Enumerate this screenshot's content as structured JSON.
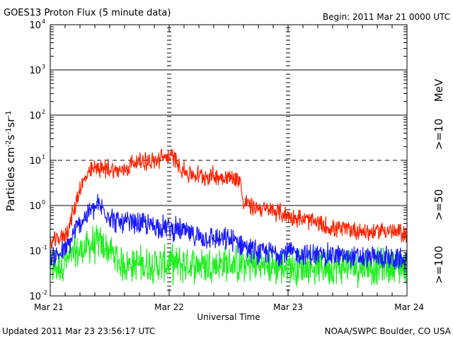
{
  "header": {
    "title": "GOES13 Proton Flux (5 minute data)",
    "begin": "Begin: 2011 Mar 21 0000 UTC"
  },
  "footer": {
    "updated": "Updated 2011 Mar 23 23:56:17 UTC",
    "credit": "NOAA/SWPC Boulder, CO USA"
  },
  "chart_data": {
    "type": "line",
    "title": "GOES13 Proton Flux (5 minute data)",
    "xlabel": "Universal Time",
    "ylabel": {
      "base": "Particles cm",
      "e1": "-2",
      "s": "s",
      "e2": "-1",
      "sr": "sr",
      "e3": "-1"
    },
    "y_scale": "log",
    "ylim": [
      0.01,
      10000
    ],
    "y_ticks": [
      {
        "value": 0.01,
        "base": "10",
        "exp": "-2"
      },
      {
        "value": 0.1,
        "base": "10",
        "exp": "-1"
      },
      {
        "value": 1,
        "base": "10",
        "exp": "0"
      },
      {
        "value": 10,
        "base": "10",
        "exp": "1"
      },
      {
        "value": 100,
        "base": "10",
        "exp": "2"
      },
      {
        "value": 1000,
        "base": "10",
        "exp": "3"
      },
      {
        "value": 10000,
        "base": "10",
        "exp": "4"
      }
    ],
    "x_ticks": [
      "Mar 21",
      "Mar 22",
      "Mar 23",
      "Mar 24"
    ],
    "units_label": "MeV",
    "reference_lines": {
      "solid": [
        1,
        100,
        1000
      ],
      "dashed": [
        10
      ]
    },
    "series": [
      {
        "name": ">=10",
        "color": "#ff2200",
        "noise": 0.18,
        "x": [
          0.0,
          0.1,
          0.15,
          0.2,
          0.25,
          0.3,
          0.35,
          0.4,
          0.45,
          0.5,
          0.55,
          0.6,
          0.65,
          0.7,
          0.75,
          0.8,
          0.85,
          0.9,
          0.95,
          1.0,
          1.05,
          1.1,
          1.15,
          1.2,
          1.3,
          1.4,
          1.5,
          1.55,
          1.6,
          1.62,
          1.65,
          1.7,
          1.75,
          1.8,
          1.9,
          2.0,
          2.1,
          2.2,
          2.3,
          2.4,
          2.5,
          2.6,
          2.7,
          2.8,
          2.9,
          3.0
        ],
        "values": [
          0.15,
          0.2,
          0.3,
          0.8,
          2.5,
          4.0,
          6.0,
          7.0,
          6.5,
          6.5,
          6.0,
          5.8,
          7.0,
          9.0,
          9.5,
          10.0,
          9.0,
          10.0,
          12.0,
          12.0,
          11.0,
          7.0,
          5.0,
          4.8,
          4.5,
          4.5,
          4.2,
          4.0,
          3.8,
          1.0,
          1.2,
          0.9,
          0.9,
          0.8,
          0.75,
          0.6,
          0.5,
          0.45,
          0.35,
          0.3,
          0.3,
          0.28,
          0.25,
          0.3,
          0.25,
          0.25
        ]
      },
      {
        "name": ">=50",
        "color": "#1a1aff",
        "noise": 0.22,
        "x": [
          0.0,
          0.1,
          0.15,
          0.2,
          0.25,
          0.3,
          0.35,
          0.4,
          0.45,
          0.5,
          0.55,
          0.6,
          0.7,
          0.8,
          0.9,
          1.0,
          1.05,
          1.1,
          1.2,
          1.3,
          1.4,
          1.5,
          1.6,
          1.7,
          1.8,
          1.9,
          2.0,
          2.2,
          2.4,
          2.6,
          2.8,
          3.0
        ],
        "values": [
          0.07,
          0.09,
          0.12,
          0.25,
          0.4,
          0.6,
          0.8,
          1.0,
          0.8,
          0.6,
          0.45,
          0.4,
          0.4,
          0.38,
          0.35,
          0.32,
          0.3,
          0.28,
          0.22,
          0.2,
          0.18,
          0.17,
          0.15,
          0.1,
          0.09,
          0.09,
          0.09,
          0.08,
          0.08,
          0.07,
          0.07,
          0.06
        ]
      },
      {
        "name": ">=100",
        "color": "#22ee22",
        "noise": 0.35,
        "x": [
          0.0,
          0.1,
          0.2,
          0.3,
          0.4,
          0.5,
          0.6,
          1.0,
          1.5,
          2.0,
          2.5,
          3.0
        ],
        "values": [
          0.04,
          0.05,
          0.08,
          0.12,
          0.15,
          0.1,
          0.05,
          0.05,
          0.05,
          0.045,
          0.045,
          0.045
        ]
      }
    ]
  }
}
